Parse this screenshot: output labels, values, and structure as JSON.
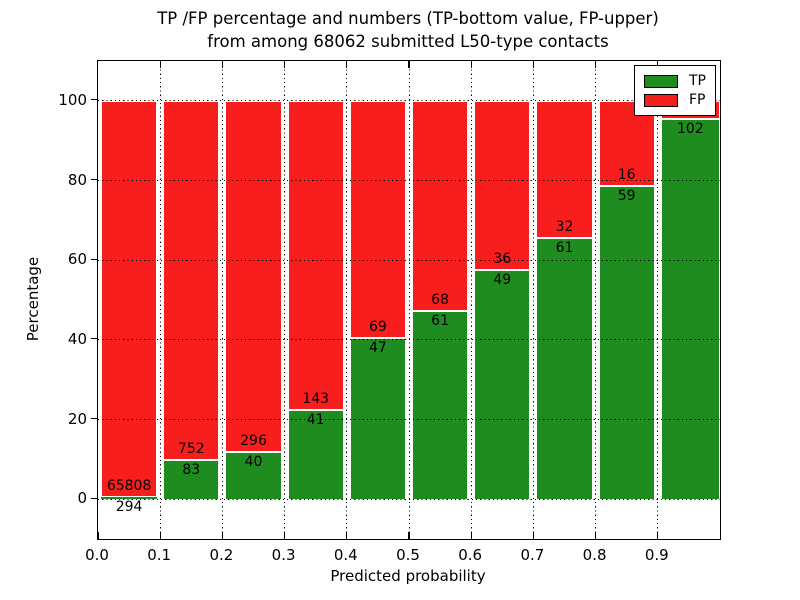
{
  "title": {
    "line1": "TP /FP percentage and numbers (TP-bottom value, FP-upper)",
    "line2": "from among 68062 submitted L50-type contacts"
  },
  "axes": {
    "xlabel": "Predicted probability",
    "ylabel": "Percentage",
    "x_tick_labels": [
      "0.0",
      "0.1",
      "0.2",
      "0.3",
      "0.4",
      "0.5",
      "0.6",
      "0.7",
      "0.8",
      "0.9"
    ],
    "y_tick_labels": [
      "0",
      "20",
      "40",
      "60",
      "80",
      "100"
    ],
    "y_tick_values": [
      0,
      20,
      40,
      60,
      80,
      100
    ],
    "ylim": [
      -10,
      110
    ],
    "xlim": [
      0,
      1
    ]
  },
  "legend": {
    "position": "upper right",
    "items": [
      {
        "label": "TP",
        "color": "#1e8c1e"
      },
      {
        "label": "FP",
        "color": "#f81e1e"
      }
    ]
  },
  "colors": {
    "tp_green": "#1e8c1e",
    "fp_red": "#f81e1e",
    "background": "#ffffff",
    "frame": "#000000",
    "grid": "#000000",
    "bar_edge": "#ffffff"
  },
  "chart_data": {
    "type": "bar",
    "stacked": true,
    "normalized": "each bin stacks to 100%",
    "title": "TP /FP percentage and numbers (TP-bottom value, FP-upper) from among 68062 submitted L50-type contacts",
    "xlabel": "Predicted probability",
    "ylabel": "Percentage",
    "categories": [
      "0.0-0.1",
      "0.1-0.2",
      "0.2-0.3",
      "0.3-0.4",
      "0.4-0.5",
      "0.5-0.6",
      "0.6-0.7",
      "0.7-0.8",
      "0.8-0.9",
      "0.9-1.0"
    ],
    "series": [
      {
        "name": "TP",
        "counts": [
          294,
          83,
          40,
          41,
          47,
          61,
          49,
          61,
          59,
          102
        ],
        "percent": [
          0.44,
          9.94,
          11.9,
          22.28,
          40.52,
          47.29,
          57.65,
          65.59,
          78.67,
          95.33
        ]
      },
      {
        "name": "FP",
        "counts": [
          65808,
          752,
          296,
          143,
          69,
          68,
          36,
          32,
          16,
          null
        ],
        "percent": [
          99.56,
          90.06,
          88.1,
          77.72,
          59.48,
          52.71,
          42.35,
          34.41,
          21.33,
          4.67
        ]
      }
    ],
    "bar_value_labels": {
      "tp": [
        "294",
        "83",
        "40",
        "41",
        "47",
        "61",
        "49",
        "61",
        "59",
        "102"
      ],
      "fp": [
        "65808",
        "752",
        "296",
        "143",
        "69",
        "68",
        "36",
        "32",
        "16",
        ""
      ]
    },
    "total_submitted": 68062,
    "ylim": [
      -10,
      110
    ],
    "grid": "dotted",
    "legend_position": "upper right"
  }
}
